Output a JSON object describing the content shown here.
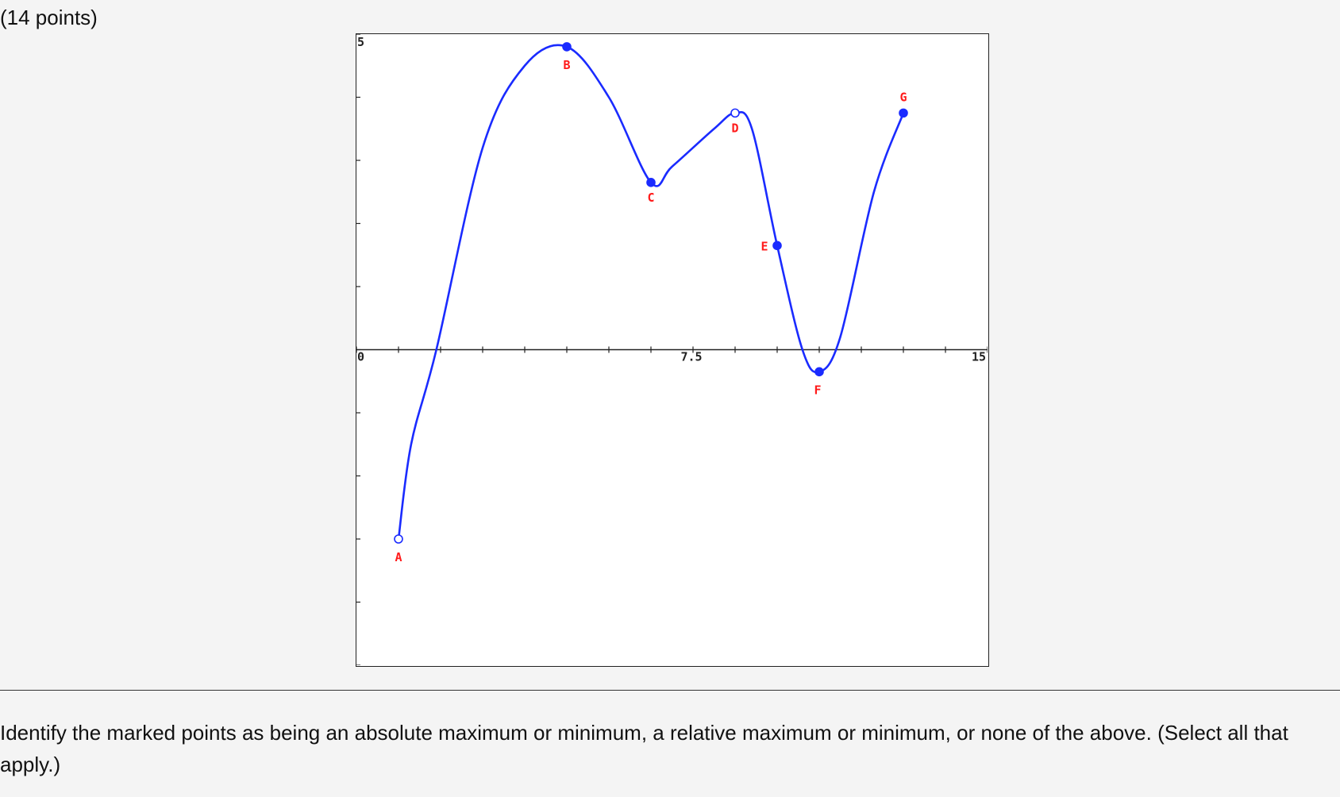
{
  "header": {
    "points_text": "(14 points)"
  },
  "question": {
    "text": "Identify the marked points as being an absolute maximum or minimum, a relative maximum or minimum, or none of the above. (Select all that apply.)"
  },
  "colors": {
    "curve": "#1a2bff",
    "point_label": "#ff1a1a",
    "axis": "#222222"
  },
  "chart_data": {
    "type": "line",
    "xlim": [
      0,
      15
    ],
    "ylim": [
      -5,
      5
    ],
    "x_tick_labels": [
      "0",
      "7.5",
      "15"
    ],
    "y_tick_labels": [
      "5"
    ],
    "x_tick_step": 1,
    "y_tick_step": 1,
    "curve": [
      [
        1,
        -3
      ],
      [
        1.3,
        -1.5
      ],
      [
        1.9,
        0
      ],
      [
        3,
        3.2
      ],
      [
        4,
        4.5
      ],
      [
        5,
        4.8
      ],
      [
        6,
        4
      ],
      [
        7,
        2.65
      ],
      [
        7.5,
        2.9
      ],
      [
        8.5,
        3.5
      ],
      [
        9,
        3.75
      ],
      [
        9.4,
        3.5
      ],
      [
        10,
        1.65
      ],
      [
        10.6,
        0
      ],
      [
        11,
        -0.35
      ],
      [
        11.5,
        0.2
      ],
      [
        12.3,
        2.5
      ],
      [
        13,
        3.75
      ]
    ],
    "points": [
      {
        "label": "A",
        "x": 1,
        "y": -3,
        "filled": false
      },
      {
        "label": "B",
        "x": 5,
        "y": 4.8,
        "filled": true
      },
      {
        "label": "C",
        "x": 7,
        "y": 2.65,
        "filled": true
      },
      {
        "label": "D",
        "x": 9,
        "y": 3.75,
        "filled": false
      },
      {
        "label": "E",
        "x": 10,
        "y": 1.65,
        "filled": true
      },
      {
        "label": "F",
        "x": 11,
        "y": -0.35,
        "filled": true
      },
      {
        "label": "G",
        "x": 13,
        "y": 3.75,
        "filled": true
      }
    ]
  }
}
